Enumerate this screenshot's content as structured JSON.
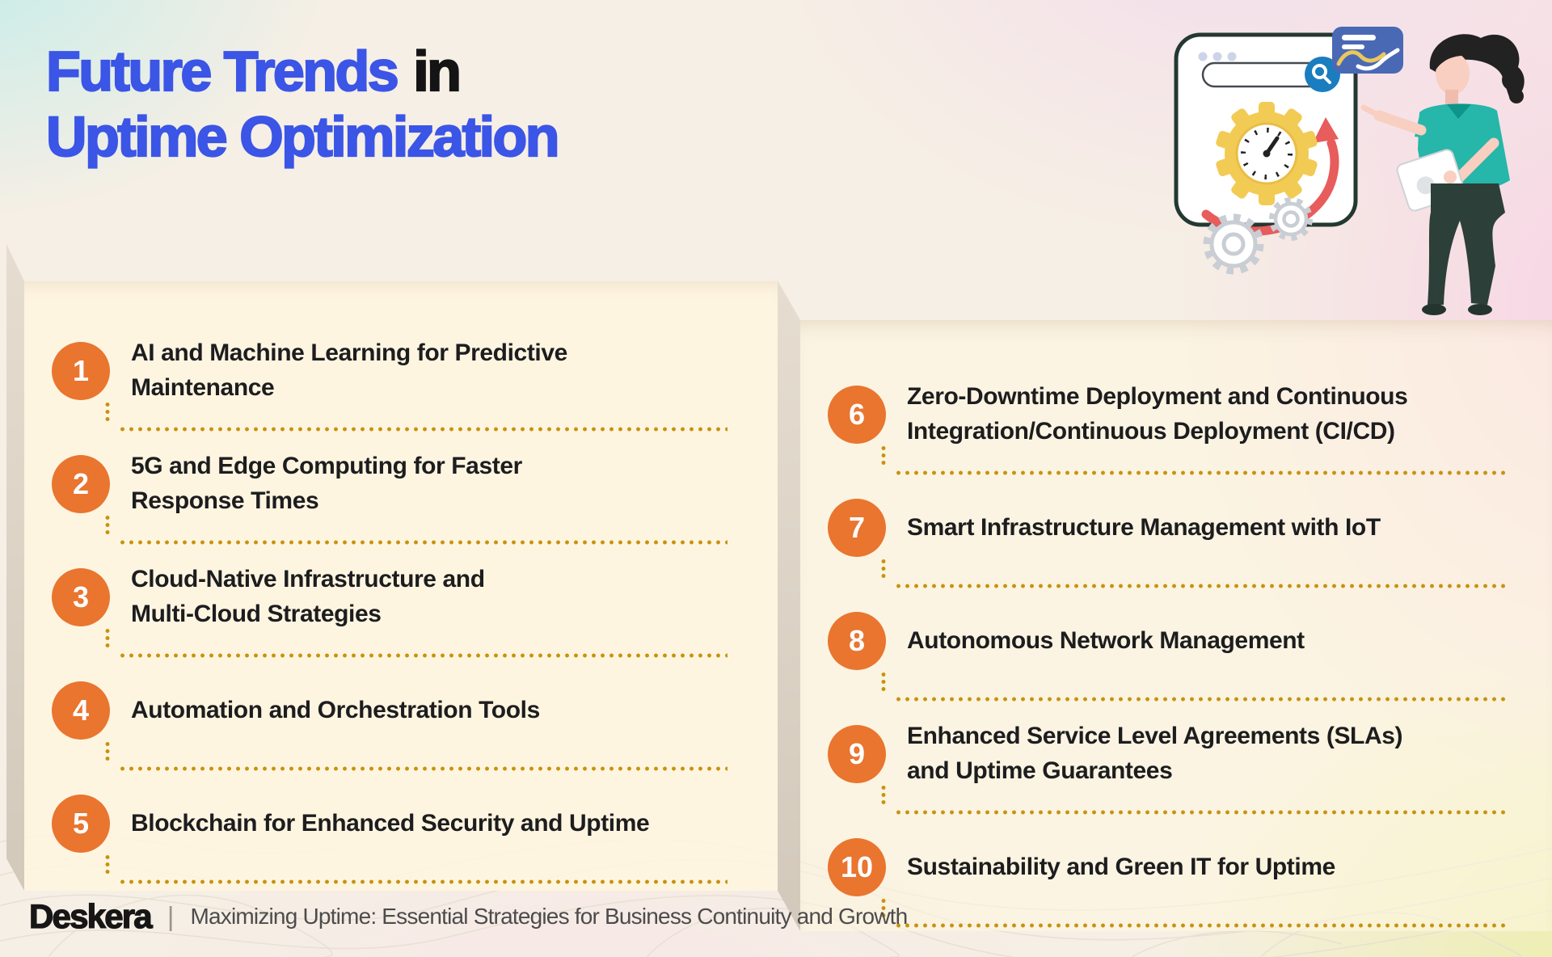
{
  "title": {
    "line1_highlight": "Future Trends",
    "line1_rest": "in",
    "line2": "Uptime Optimization"
  },
  "panels": {
    "left": {
      "items": [
        {
          "number": "1",
          "label": "AI and Machine Learning for Predictive\nMaintenance"
        },
        {
          "number": "2",
          "label": "5G and Edge Computing for Faster\nResponse Times"
        },
        {
          "number": "3",
          "label": "Cloud-Native Infrastructure and\nMulti-Cloud Strategies"
        },
        {
          "number": "4",
          "label": "Automation and Orchestration Tools"
        },
        {
          "number": "5",
          "label": "Blockchain for Enhanced Security and Uptime"
        }
      ]
    },
    "right": {
      "items": [
        {
          "number": "6",
          "label": "Zero-Downtime Deployment and Continuous\nIntegration/Continuous Deployment (CI/CD)"
        },
        {
          "number": "7",
          "label": "Smart Infrastructure Management with IoT"
        },
        {
          "number": "8",
          "label": "Autonomous Network Management"
        },
        {
          "number": "9",
          "label": "Enhanced Service Level Agreements (SLAs)\nand Uptime Guarantees"
        },
        {
          "number": "10",
          "label": "Sustainability and Green IT for Uptime"
        }
      ]
    }
  },
  "footer": {
    "brand": "Deskera",
    "divider": "|",
    "tagline": "Maximizing Uptime: Essential Strategies for Business Continuity and Growth"
  },
  "colors": {
    "accent_blue": "#3b55e6",
    "title_dark": "#141414",
    "accent_orange": "#e9752f",
    "dot_gold": "#c7930f",
    "text_dark": "#1d1d1f",
    "panel_cream": "#fdf3e1",
    "side_strip": "#ded5c8",
    "gear_yellow": "#f2cb54",
    "arrow_red": "#e85c5c",
    "chart_card_blue": "#4a69b5",
    "search_blue": "#1a7dc0",
    "shirt_teal": "#26b6aa"
  },
  "illustration": {
    "description": "Person with tablet pointing at a browser window containing a gear clock, refresh arrow and search bar, with a line chart card and gears"
  }
}
